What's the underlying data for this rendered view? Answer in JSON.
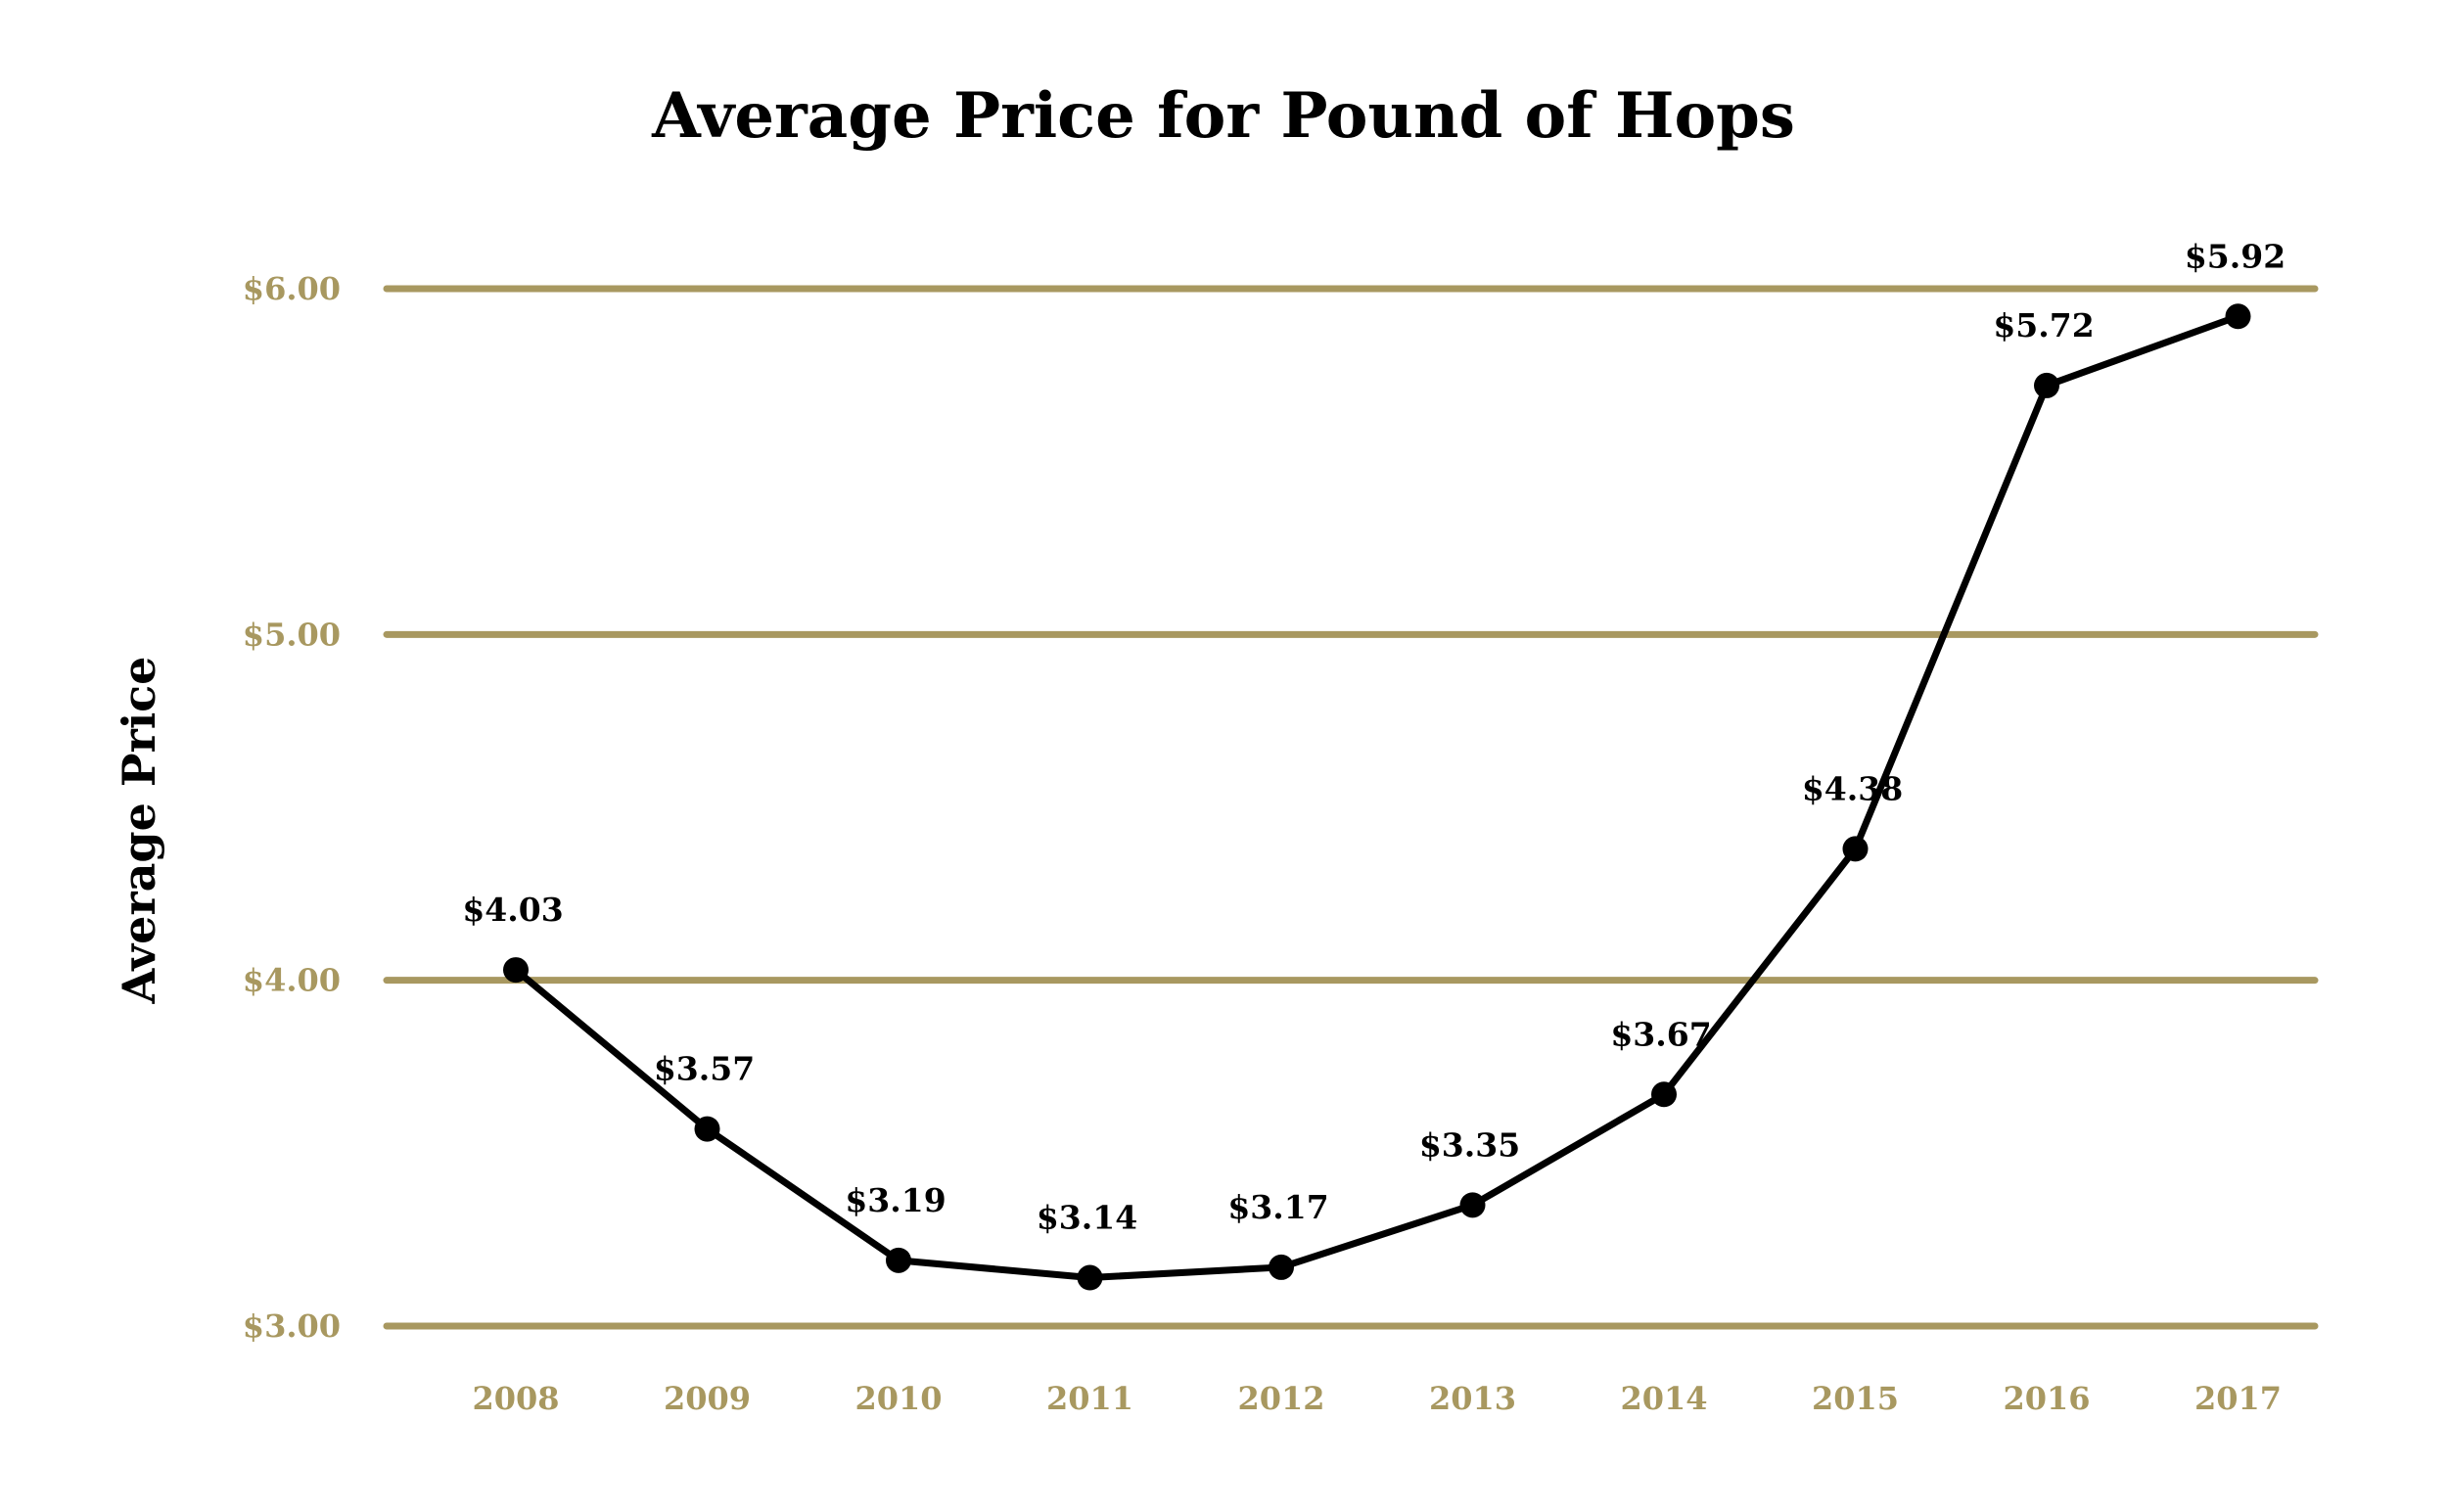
{
  "chart_data": {
    "type": "line",
    "title": "Average Price for Pound of Hops",
    "xlabel": "",
    "ylabel": "Average Price",
    "categories": [
      "2008",
      "2009",
      "2010",
      "2011",
      "2012",
      "2013",
      "2014",
      "2015",
      "2016",
      "2017"
    ],
    "series": [
      {
        "values": [
          4.03,
          3.57,
          3.19,
          3.14,
          3.17,
          3.35,
          3.67,
          4.38,
          5.72,
          5.92
        ],
        "labels": [
          "$4.03",
          "$3.57",
          "$3.19",
          "$3.14",
          "$3.17",
          "$3.35",
          "$3.67",
          "$4.38",
          "$5.72",
          "$5.92"
        ]
      }
    ],
    "ylim": [
      3.0,
      6.0
    ],
    "yticks": [
      3.0,
      4.0,
      5.0,
      6.0
    ],
    "ytick_labels": [
      "$3.00",
      "$4.00",
      "$5.00",
      "$6.00"
    ],
    "grid": true,
    "legend": "none",
    "colors": {
      "grid": "#a89860",
      "axis_text": "#a89860",
      "line": "#000000"
    }
  }
}
